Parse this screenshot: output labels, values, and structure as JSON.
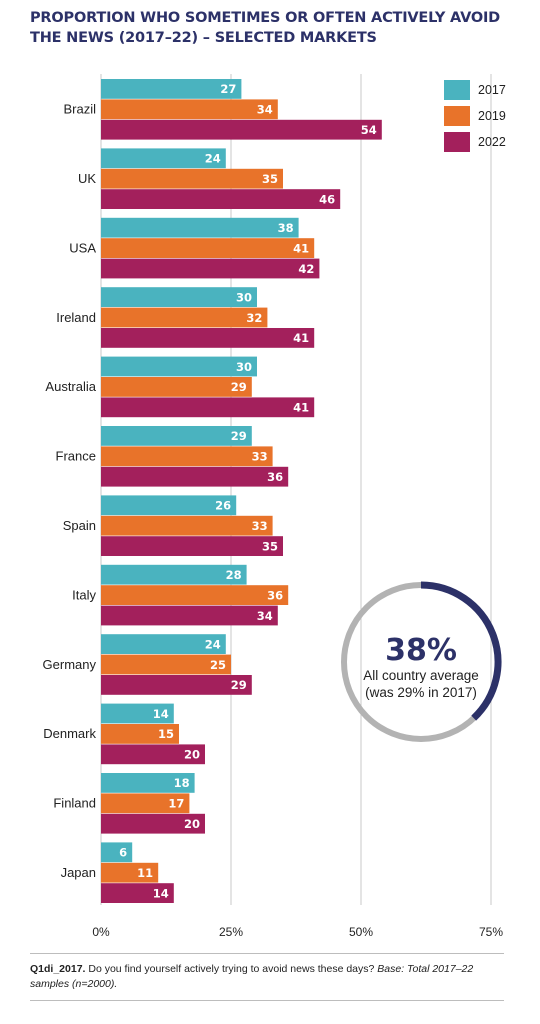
{
  "title": "PROPORTION WHO SOMETIMES OR OFTEN ACTIVELY AVOID THE NEWS (2017–22) – SELECTED MARKETS",
  "colors": {
    "2017": "#4ab3bf",
    "2019": "#e8732a",
    "2022": "#a3205c",
    "circle_track": "#b3b3b3",
    "circle_arc": "#2c3168",
    "title": "#2c3168"
  },
  "chart_data": {
    "type": "bar",
    "orientation": "horizontal",
    "title": "PROPORTION WHO SOMETIMES OR OFTEN ACTIVELY AVOID THE NEWS (2017–22) – SELECTED MARKETS",
    "categories": [
      "Brazil",
      "UK",
      "USA",
      "Ireland",
      "Australia",
      "France",
      "Spain",
      "Italy",
      "Germany",
      "Denmark",
      "Finland",
      "Japan"
    ],
    "series": [
      {
        "name": "2017",
        "values": [
          27,
          24,
          38,
          30,
          30,
          29,
          26,
          28,
          24,
          14,
          18,
          6
        ]
      },
      {
        "name": "2019",
        "values": [
          34,
          35,
          41,
          32,
          29,
          33,
          33,
          36,
          25,
          15,
          17,
          11
        ]
      },
      {
        "name": "2022",
        "values": [
          54,
          46,
          42,
          41,
          41,
          36,
          35,
          34,
          29,
          20,
          20,
          14
        ]
      }
    ],
    "xlim": [
      0,
      75
    ],
    "xticks": [
      "0%",
      "25%",
      "50%",
      "75%"
    ],
    "legend_position": "top-right",
    "annotation": {
      "value": "38%",
      "value_number": 38,
      "line1": "All country average",
      "line2": "(was 29% in 2017)"
    }
  },
  "footnote": {
    "code": "Q1di_2017.",
    "question": " Do you find yourself actively trying to avoid news these days? ",
    "base": "Base: Total 2017–22 samples (n=2000)."
  }
}
